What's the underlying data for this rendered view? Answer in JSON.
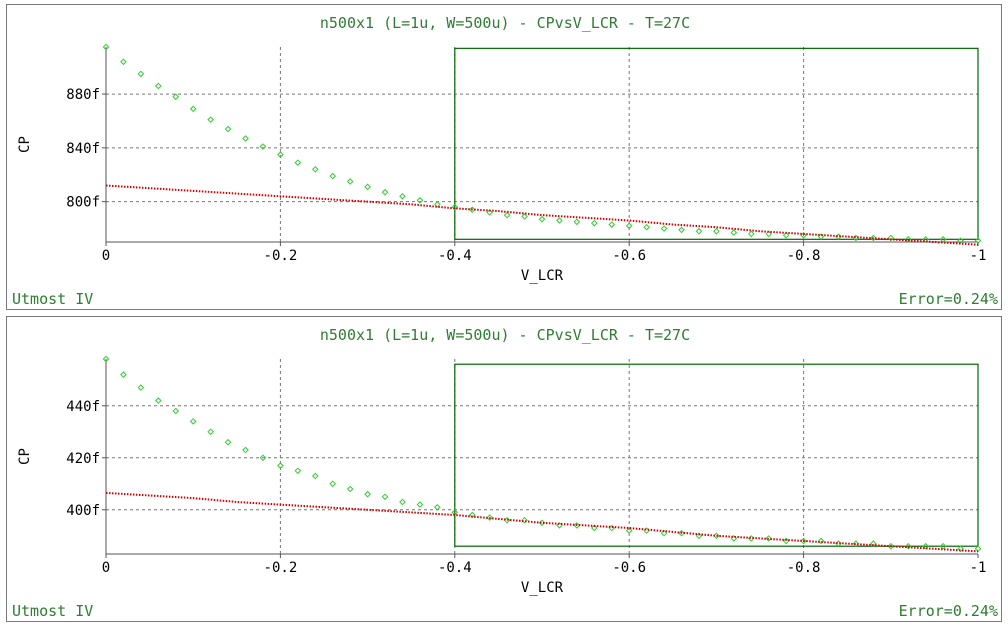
{
  "colors": {
    "title": "#2e7d32",
    "footer": "#2e7d32",
    "axis_text": "#000000",
    "measured": "#33cc33",
    "simulated": "#cc0000",
    "optimization_box": "#006600",
    "grid": "#777777"
  },
  "chart_data": [
    {
      "type": "scatter",
      "title": "n500x1 (L=1u, W=500u) - CPvsV_LCR - T=27C",
      "xlabel": "V_LCR",
      "ylabel": "CP",
      "footer_left": "Utmost IV",
      "footer_right": "Error=0.24%",
      "xlim": [
        0,
        -1
      ],
      "ylim": [
        770,
        915
      ],
      "x_ticks": [
        0,
        -0.2,
        -0.4,
        -0.6,
        -0.8,
        -1
      ],
      "x_tick_labels": [
        "0",
        "-0.2",
        "-0.4",
        "-0.6",
        "-0.8",
        "-1"
      ],
      "y_ticks": [
        800,
        840,
        880
      ],
      "y_tick_labels": [
        "800f",
        "840f",
        "880f"
      ],
      "grid": true,
      "optimization_window": {
        "x": [
          -0.4,
          -1
        ],
        "y": [
          772,
          914
        ]
      },
      "series": [
        {
          "marker": "diamond",
          "x": [
            0,
            -0.02,
            -0.04,
            -0.06,
            -0.08,
            -0.1,
            -0.12,
            -0.14,
            -0.16,
            -0.18,
            -0.2,
            -0.22,
            -0.24,
            -0.26,
            -0.28,
            -0.3,
            -0.32,
            -0.34,
            -0.36,
            -0.38,
            -0.4,
            -0.42,
            -0.44,
            -0.46,
            -0.48,
            -0.5,
            -0.52,
            -0.54,
            -0.56,
            -0.58,
            -0.6,
            -0.62,
            -0.64,
            -0.66,
            -0.68,
            -0.7,
            -0.72,
            -0.74,
            -0.76,
            -0.78,
            -0.8,
            -0.82,
            -0.84,
            -0.86,
            -0.88,
            -0.9,
            -0.92,
            -0.94,
            -0.96,
            -0.98,
            -1
          ],
          "y": [
            915,
            904,
            895,
            886,
            878,
            869,
            861,
            854,
            847,
            841,
            835,
            829,
            824,
            819,
            815,
            811,
            807,
            804,
            801,
            798,
            796,
            794,
            792,
            790,
            789,
            787,
            786,
            785,
            784,
            783,
            782,
            781,
            780,
            779,
            778,
            778,
            777,
            776,
            776,
            775,
            775,
            774,
            774,
            773,
            773,
            773,
            772,
            772,
            772,
            771,
            771
          ]
        },
        {
          "marker": "dotted-line",
          "x": [
            0,
            -0.05,
            -0.1,
            -0.15,
            -0.2,
            -0.25,
            -0.3,
            -0.35,
            -0.4,
            -0.45,
            -0.5,
            -0.55,
            -0.6,
            -0.65,
            -0.7,
            -0.75,
            -0.8,
            -0.85,
            -0.9,
            -0.95,
            -1
          ],
          "y": [
            812,
            810,
            808,
            806,
            804,
            802,
            800,
            798,
            795,
            793,
            790,
            788,
            786,
            783,
            781,
            778,
            776,
            774,
            772,
            770,
            768
          ]
        }
      ]
    },
    {
      "type": "scatter",
      "title": "n500x1 (L=1u, W=500u) - CPvsV_LCR - T=27C",
      "xlabel": "V_LCR",
      "ylabel": "CP",
      "footer_left": "Utmost IV",
      "footer_right": "Error=0.24%",
      "xlim": [
        0,
        -1
      ],
      "ylim": [
        383,
        458
      ],
      "x_ticks": [
        0,
        -0.2,
        -0.4,
        -0.6,
        -0.8,
        -1
      ],
      "x_tick_labels": [
        "0",
        "-0.2",
        "-0.4",
        "-0.6",
        "-0.8",
        "-1"
      ],
      "y_ticks": [
        400,
        420,
        440
      ],
      "y_tick_labels": [
        "400f",
        "420f",
        "440f"
      ],
      "grid": true,
      "optimization_window": {
        "x": [
          -0.4,
          -1
        ],
        "y": [
          386,
          456
        ]
      },
      "series": [
        {
          "marker": "diamond",
          "x": [
            0,
            -0.02,
            -0.04,
            -0.06,
            -0.08,
            -0.1,
            -0.12,
            -0.14,
            -0.16,
            -0.18,
            -0.2,
            -0.22,
            -0.24,
            -0.26,
            -0.28,
            -0.3,
            -0.32,
            -0.34,
            -0.36,
            -0.38,
            -0.4,
            -0.42,
            -0.44,
            -0.46,
            -0.48,
            -0.5,
            -0.52,
            -0.54,
            -0.56,
            -0.58,
            -0.6,
            -0.62,
            -0.64,
            -0.66,
            -0.68,
            -0.7,
            -0.72,
            -0.74,
            -0.76,
            -0.78,
            -0.8,
            -0.82,
            -0.84,
            -0.86,
            -0.88,
            -0.9,
            -0.92,
            -0.94,
            -0.96,
            -0.98,
            -1
          ],
          "y": [
            458,
            452,
            447,
            442,
            438,
            434,
            430,
            426,
            423,
            420,
            417,
            415,
            413,
            410,
            408,
            406,
            405,
            403,
            402,
            401,
            399,
            398,
            397,
            396,
            396,
            395,
            394,
            394,
            393,
            393,
            392,
            392,
            391,
            391,
            390,
            390,
            389,
            389,
            389,
            388,
            388,
            388,
            387,
            387,
            387,
            386,
            386,
            386,
            386,
            385,
            385
          ]
        },
        {
          "marker": "dotted-line",
          "x": [
            0,
            -0.05,
            -0.1,
            -0.15,
            -0.2,
            -0.25,
            -0.3,
            -0.35,
            -0.4,
            -0.45,
            -0.5,
            -0.55,
            -0.6,
            -0.65,
            -0.7,
            -0.75,
            -0.8,
            -0.85,
            -0.9,
            -0.95,
            -1
          ],
          "y": [
            406.5,
            405.5,
            404.5,
            403,
            402,
            401,
            400,
            399,
            398,
            396.5,
            395,
            394,
            393,
            391.5,
            390,
            389,
            388,
            387,
            386,
            385,
            384
          ]
        }
      ]
    }
  ]
}
